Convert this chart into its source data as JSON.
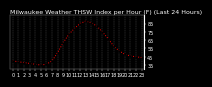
{
  "title": "Milwaukee Weather THSW Index per Hour (F) (Last 24 Hours)",
  "hours": [
    0,
    1,
    2,
    3,
    4,
    5,
    6,
    7,
    8,
    9,
    10,
    11,
    12,
    13,
    14,
    15,
    16,
    17,
    18,
    19,
    20,
    21,
    22,
    23
  ],
  "values": [
    40,
    39,
    38,
    37,
    36,
    35,
    36,
    40,
    50,
    62,
    72,
    79,
    85,
    88,
    86,
    82,
    75,
    67,
    58,
    52,
    48,
    46,
    45,
    44
  ],
  "line_color": "#ff0000",
  "marker_color": "#000000",
  "bg_color": "#000000",
  "plot_bg": "#000000",
  "grid_color": "#555555",
  "ylim": [
    30,
    95
  ],
  "yticks": [
    35,
    45,
    55,
    65,
    75,
    85
  ],
  "ytick_labels": [
    "35",
    "45",
    "55",
    "65",
    "75",
    "85"
  ],
  "xticks": [
    0,
    1,
    2,
    3,
    4,
    5,
    6,
    7,
    8,
    9,
    10,
    11,
    12,
    13,
    14,
    15,
    16,
    17,
    18,
    19,
    20,
    21,
    22,
    23
  ],
  "title_fontsize": 4.5,
  "tick_fontsize": 3.5
}
